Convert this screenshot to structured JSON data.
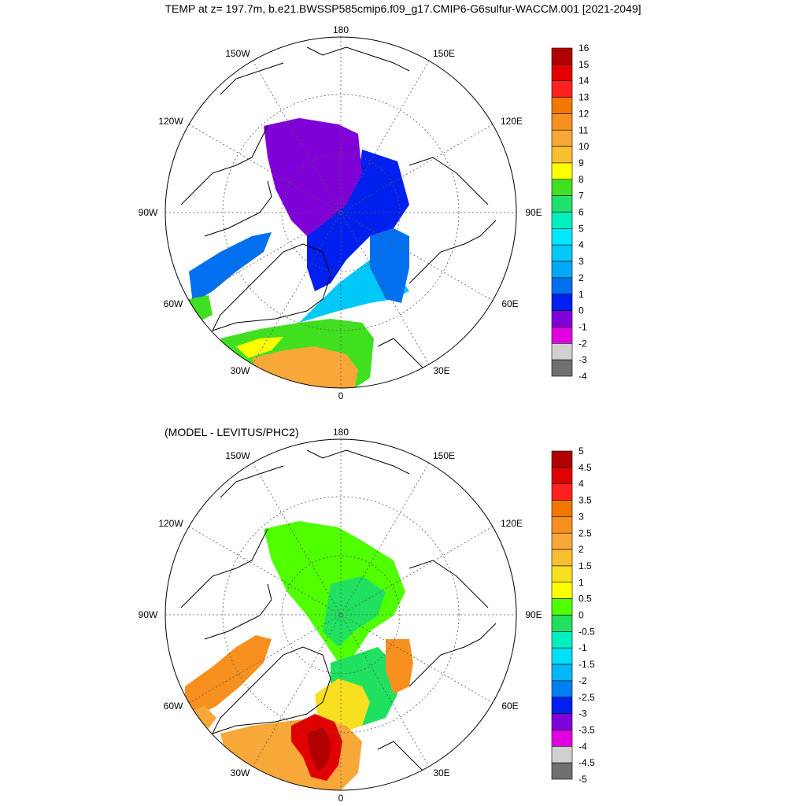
{
  "title": "TEMP at z= 197.7m, b.e21.BWSSP585cmip6.f09_g17.CMIP6-G6sulfur-WACCM.001 [2021-2049]",
  "subtitle": "(MODEL - LEVITUS/PHC2)",
  "longitude_labels": {
    "top": "180",
    "bottom": "0",
    "left": "90W",
    "right": "90E",
    "upper_left": "150W",
    "upper_right": "150E",
    "mid_left": "120W",
    "mid_right": "120E",
    "lower_left": "60W",
    "lower_right": "60E",
    "bottom_left": "30W",
    "bottom_right": "30E"
  },
  "colorbar_top": {
    "labels": [
      "16",
      "15",
      "14",
      "13",
      "12",
      "11",
      "10",
      "9",
      "8",
      "7",
      "6",
      "5",
      "4",
      "3",
      "2",
      "1",
      "0",
      "-1",
      "-2",
      "-3",
      "-4"
    ],
    "colors": [
      "#b00000",
      "#e00000",
      "#ff2020",
      "#f07800",
      "#f89020",
      "#f8a838",
      "#f8c030",
      "#ffff00",
      "#40e020",
      "#20e070",
      "#00f0c0",
      "#00e8ff",
      "#00c8f8",
      "#00a8f8",
      "#0070f0",
      "#0020f0",
      "#8000d8",
      "#e000e0",
      "#d0d0d0",
      "#707070"
    ]
  },
  "colorbar_bottom": {
    "labels": [
      "5",
      "4.5",
      "4",
      "3.5",
      "3",
      "2.5",
      "2",
      "1.5",
      "1",
      "0.5",
      "0",
      "-0.5",
      "-1",
      "-1.5",
      "-2",
      "-2.5",
      "-3",
      "-3.5",
      "-4",
      "-4.5",
      "-5"
    ],
    "colors": [
      "#b00000",
      "#e00000",
      "#ff2020",
      "#f07800",
      "#f89020",
      "#f8a838",
      "#f8c030",
      "#f8e020",
      "#ffff00",
      "#50ff00",
      "#20e060",
      "#00f0c0",
      "#00e0f8",
      "#00b8f8",
      "#0080f0",
      "#0020f0",
      "#8000d8",
      "#e000e0",
      "#d0d0d0",
      "#707070"
    ]
  }
}
